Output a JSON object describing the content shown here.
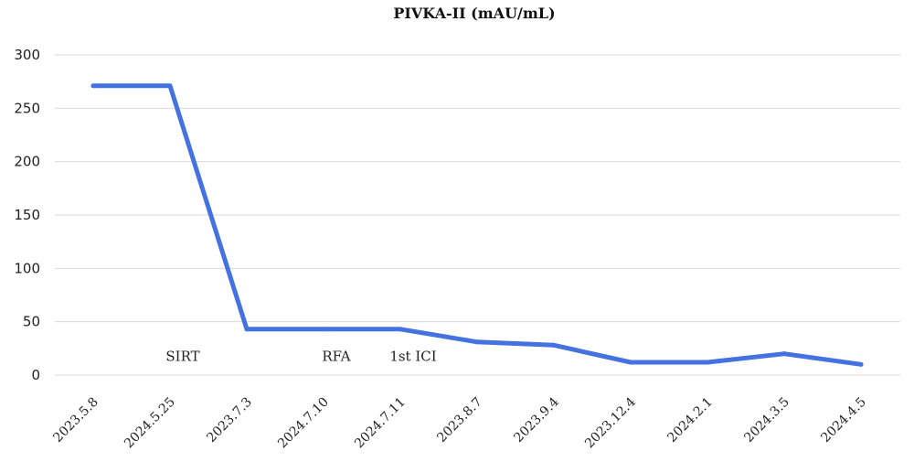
{
  "chart_data": {
    "type": "line",
    "title": "PIVKA-II (mAU/mL)",
    "categories": [
      "2023.5.8",
      "2024.5.25",
      "2023.7.3",
      "2024.7.10",
      "2024.7.11",
      "2023.8.7",
      "2023.9.4",
      "2023.12.4",
      "2024.2.1",
      "2024.3.5",
      "2024.4.5"
    ],
    "series": [
      {
        "values": [
          271,
          271,
          43,
          43,
          43,
          31,
          28,
          12,
          12,
          20,
          10
        ]
      }
    ],
    "ylim": [
      0,
      300
    ],
    "yticks": [
      0,
      50,
      100,
      150,
      200,
      250,
      300
    ],
    "grid": true,
    "legend": "none",
    "annotations": [
      {
        "text": "SIRT",
        "x": "2024.5.25",
        "y": 20
      },
      {
        "text": "RFA",
        "x": "2024.7.10",
        "y": 20
      },
      {
        "text": "1st ICI",
        "x": "2024.7.11",
        "y": 20
      }
    ],
    "colors": {
      "line": "#4472e0"
    }
  }
}
